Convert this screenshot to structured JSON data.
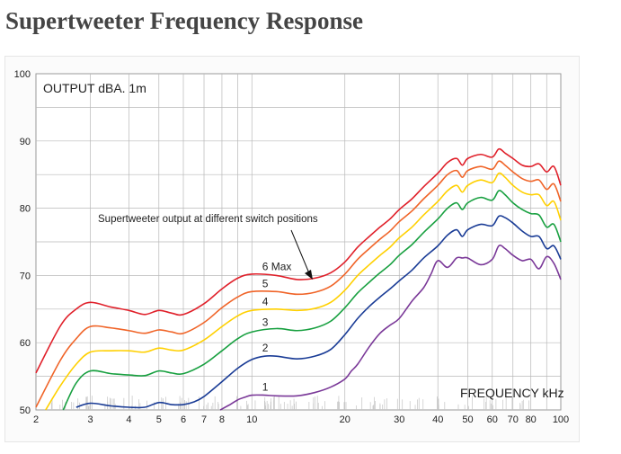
{
  "page": {
    "title": "Supertweeter Frequency Response"
  },
  "chart_data": {
    "type": "line",
    "title": "",
    "xlabel": "FREQUENCY kHz",
    "ylabel": "OUTPUT dBA. 1m",
    "x_scale": "log",
    "xlim": [
      2,
      100
    ],
    "ylim": [
      50,
      100
    ],
    "x_ticks": [
      2,
      3,
      4,
      5,
      6,
      7,
      8,
      10,
      20,
      30,
      40,
      50,
      60,
      70,
      80,
      100
    ],
    "x_tick_labels": [
      "2",
      "3",
      "4",
      "5",
      "6",
      "7",
      "8",
      "10",
      "20",
      "30",
      "40",
      "50",
      "60",
      "70",
      "80",
      "100"
    ],
    "y_ticks": [
      50,
      60,
      70,
      80,
      90,
      100
    ],
    "y_tick_labels": [
      "50",
      "60",
      "70",
      "80",
      "90",
      "100"
    ],
    "grid": true,
    "annotation": "Supertweeter output at different switch positions",
    "series": [
      {
        "name": "6 Max",
        "color": "#e0202a",
        "x": [
          2,
          2.4,
          2.7,
          3,
          3.5,
          4,
          4.5,
          5,
          5.5,
          6,
          7,
          8,
          9,
          10,
          12,
          14,
          16,
          18,
          20,
          22,
          24,
          26,
          28,
          30,
          33,
          36,
          40,
          43,
          46,
          48,
          50,
          55,
          60,
          63,
          66,
          70,
          75,
          80,
          85,
          90,
          95,
          100
        ],
        "y": [
          55.5,
          62.5,
          65,
          66,
          65.3,
          64.8,
          64.2,
          64.8,
          64.4,
          64.2,
          65.8,
          68,
          69.6,
          70.2,
          70,
          69.4,
          69.6,
          70.4,
          72,
          74.2,
          75.8,
          77.2,
          78.4,
          79.8,
          81.4,
          83.2,
          85.2,
          86.8,
          87.4,
          86.4,
          87.4,
          88,
          87.6,
          88.8,
          88.2,
          87.4,
          86.4,
          86.2,
          86.6,
          85.4,
          86.2,
          83.4
        ]
      },
      {
        "name": "5",
        "color": "#f06428",
        "x": [
          2,
          2.4,
          2.7,
          3,
          3.5,
          4,
          4.5,
          5,
          5.5,
          6,
          7,
          8,
          9,
          10,
          12,
          14,
          16,
          18,
          20,
          22,
          24,
          26,
          28,
          30,
          33,
          36,
          40,
          43,
          46,
          48,
          50,
          55,
          60,
          63,
          66,
          70,
          75,
          80,
          85,
          90,
          95,
          100
        ],
        "y": [
          50.4,
          57.4,
          60.6,
          62.4,
          62.2,
          61.8,
          61.4,
          61.9,
          61.6,
          61.4,
          63,
          65.2,
          66.8,
          67.6,
          67.6,
          67.2,
          67.5,
          68.4,
          70.2,
          72.4,
          74,
          75.4,
          76.6,
          78,
          79.6,
          81.4,
          83.4,
          85,
          85.6,
          84.6,
          85.6,
          86.2,
          85.8,
          87,
          86.4,
          85.4,
          84.4,
          84,
          84.2,
          82.8,
          83.6,
          81
        ]
      },
      {
        "name": "4",
        "color": "#ffd000",
        "x": [
          2.15,
          2.4,
          2.7,
          3,
          3.5,
          4,
          4.5,
          5,
          5.5,
          6,
          7,
          8,
          9,
          10,
          12,
          14,
          16,
          18,
          20,
          22,
          24,
          26,
          28,
          30,
          33,
          36,
          40,
          43,
          46,
          48,
          50,
          55,
          60,
          63,
          66,
          70,
          75,
          80,
          85,
          90,
          95,
          100
        ],
        "y": [
          50,
          53.6,
          56.8,
          58.6,
          58.8,
          58.8,
          58.6,
          59.2,
          58.9,
          58.9,
          60.4,
          62.4,
          64,
          64.8,
          65,
          64.8,
          65.1,
          66,
          67.8,
          70,
          71.6,
          73,
          74.2,
          75.6,
          77.2,
          79,
          81,
          82.6,
          83.4,
          82.4,
          83.4,
          84.2,
          83.8,
          85.2,
          84.6,
          83.4,
          82.4,
          82,
          82,
          80.4,
          81,
          78.2
        ]
      },
      {
        "name": "3",
        "color": "#18a040",
        "x": [
          2.45,
          2.7,
          3,
          3.5,
          4,
          4.5,
          5,
          5.5,
          6,
          7,
          8,
          9,
          10,
          12,
          14,
          16,
          18,
          20,
          22,
          24,
          26,
          28,
          30,
          33,
          36,
          40,
          43,
          46,
          48,
          50,
          55,
          60,
          63,
          66,
          70,
          75,
          80,
          85,
          90,
          95,
          100
        ],
        "y": [
          50,
          54,
          55.8,
          55.4,
          55.2,
          55.1,
          55.8,
          55.5,
          55.4,
          56.8,
          58.8,
          60.6,
          61.6,
          62.1,
          61.8,
          62.2,
          63.2,
          65.2,
          67.4,
          69,
          70.4,
          71.6,
          73,
          74.6,
          76.4,
          78.4,
          80,
          80.8,
          79.8,
          80.8,
          81.6,
          81.2,
          82.6,
          82,
          80.8,
          79.8,
          79.2,
          79,
          77.2,
          77.6,
          75
        ]
      },
      {
        "name": "2",
        "color": "#1a3c96",
        "x": [
          2.7,
          3,
          3.5,
          4,
          4.5,
          5,
          5.5,
          6,
          6.5,
          7,
          8,
          9,
          10,
          11,
          12,
          14,
          16,
          18,
          20,
          22,
          24,
          26,
          28,
          30,
          33,
          36,
          40,
          43,
          46,
          48,
          50,
          55,
          60,
          63,
          66,
          70,
          75,
          80,
          85,
          90,
          95,
          100
        ],
        "y": [
          50.4,
          51,
          50.6,
          50.4,
          50.4,
          51.1,
          50.8,
          50.8,
          51.2,
          52,
          54.2,
          56.2,
          57.5,
          58,
          58,
          57.6,
          58,
          59,
          61.2,
          63.6,
          65.4,
          66.8,
          68,
          69.2,
          70.8,
          72.6,
          74.4,
          76,
          76.8,
          75.8,
          76.8,
          77.6,
          77.4,
          78.8,
          78.6,
          77.8,
          76.6,
          75.8,
          75.8,
          74,
          74.4,
          72.4
        ]
      },
      {
        "name": "1",
        "color": "#7a3898",
        "x": [
          7.9,
          8.5,
          9,
          9.5,
          10,
          11,
          12,
          14,
          16,
          18,
          20,
          21,
          22,
          24,
          26,
          28,
          30,
          33,
          36,
          38,
          40,
          43,
          46,
          48,
          50,
          55,
          60,
          63,
          66,
          70,
          75,
          80,
          85,
          90,
          95,
          100
        ],
        "y": [
          50,
          50.8,
          51.5,
          51.9,
          52.2,
          52.2,
          52.1,
          52.1,
          52.6,
          53.4,
          54.6,
          55.8,
          56.8,
          59.4,
          61.4,
          62.6,
          63.6,
          66.2,
          68.2,
          70.2,
          72.2,
          71.2,
          72.6,
          72.6,
          72.6,
          71.6,
          72.4,
          74.4,
          74,
          73,
          72.2,
          72.4,
          71,
          72.8,
          71.8,
          69.4
        ]
      }
    ]
  }
}
